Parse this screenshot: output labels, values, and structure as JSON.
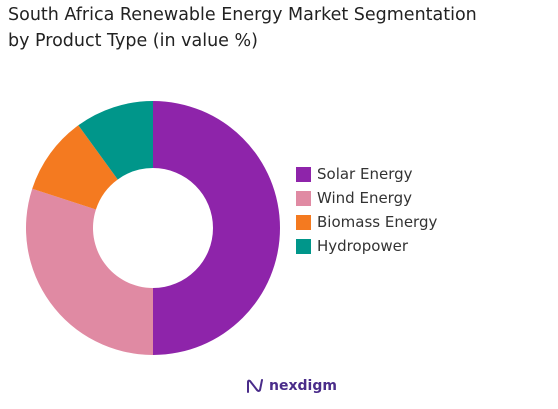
{
  "header": {
    "title": "South Africa Renewable Energy Market Segmentation\nby Product Type (in value %)"
  },
  "chart_data": {
    "type": "donut",
    "title": "South Africa Renewable Energy Market Segmentation by Product Type (in value %)",
    "series": [
      {
        "name": "Solar Energy",
        "value": 50,
        "color": "#8e24aa"
      },
      {
        "name": "Wind Energy",
        "value": 30,
        "color": "#e08aa3"
      },
      {
        "name": "Biomass Energy",
        "value": 10,
        "color": "#f47a20"
      },
      {
        "name": "Hydropower",
        "value": 10,
        "color": "#00968a"
      }
    ],
    "legend_position": "right"
  },
  "brand": {
    "name": "nexdigm",
    "logo_icon": "nexdigm-logo-icon"
  }
}
